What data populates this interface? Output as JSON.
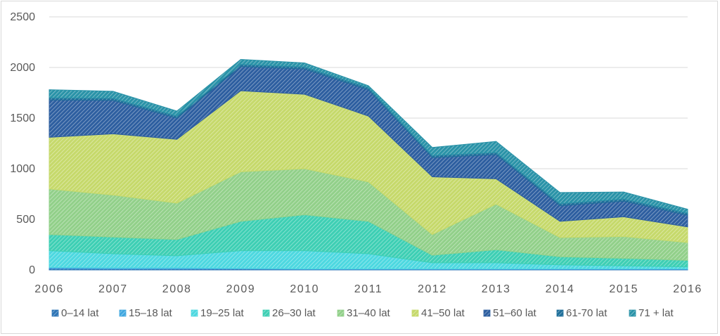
{
  "chart_data": {
    "type": "area",
    "stacked": true,
    "title": "",
    "xlabel": "",
    "ylabel": "",
    "x": [
      "2006",
      "2007",
      "2008",
      "2009",
      "2010",
      "2011",
      "2012",
      "2013",
      "2014",
      "2015",
      "2016"
    ],
    "ylim": [
      0,
      2500
    ],
    "yticks": [
      0,
      500,
      1000,
      1500,
      2000,
      2500
    ],
    "grid": true,
    "legend_position": "bottom",
    "series": [
      {
        "name": "0–14 lat",
        "color": "#2e75b6",
        "values": [
          15,
          10,
          10,
          10,
          5,
          5,
          5,
          5,
          5,
          5,
          5
        ]
      },
      {
        "name": "15–18 lat",
        "color": "#41a8e0",
        "values": [
          10,
          10,
          10,
          5,
          5,
          5,
          5,
          5,
          5,
          5,
          5
        ]
      },
      {
        "name": "19–25 lat",
        "color": "#4dd8e0",
        "values": [
          165,
          140,
          120,
          175,
          180,
          150,
          60,
          60,
          40,
          30,
          20
        ]
      },
      {
        "name": "26–30 lat",
        "color": "#3ecfb4",
        "values": [
          160,
          165,
          160,
          290,
          355,
          320,
          75,
          130,
          80,
          75,
          65
        ]
      },
      {
        "name": "31–40 lat",
        "color": "#92d08a",
        "values": [
          450,
          415,
          360,
          490,
          455,
          390,
          205,
          450,
          190,
          215,
          175
        ]
      },
      {
        "name": "41–50 lat",
        "color": "#c6d96b",
        "values": [
          510,
          605,
          630,
          800,
          735,
          650,
          570,
          250,
          160,
          195,
          155
        ]
      },
      {
        "name": "51–60 lat",
        "color": "#2e5fa0",
        "values": [
          370,
          330,
          210,
          240,
          250,
          260,
          190,
          240,
          155,
          155,
          115
        ]
      },
      {
        "name": "61-70 lat",
        "color": "#1f6f9a",
        "values": [
          20,
          20,
          20,
          20,
          20,
          20,
          20,
          20,
          20,
          20,
          20
        ]
      },
      {
        "name": "71 + lat",
        "color": "#2a93a8",
        "values": [
          80,
          70,
          50,
          50,
          40,
          20,
          80,
          110,
          110,
          70,
          40
        ]
      }
    ]
  }
}
